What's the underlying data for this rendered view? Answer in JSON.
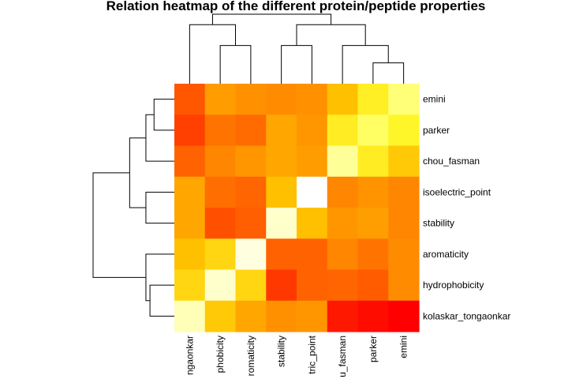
{
  "chart_data": {
    "type": "heatmap",
    "title": "Relation heatmap of the different protein/peptide properties",
    "xlabel": "",
    "ylabel": "",
    "row_labels": [
      "emini",
      "parker",
      "chou_fasman",
      "isoelectric_point",
      "stability",
      "aromaticity",
      "hydrophobicity",
      "kolaskar_tongaonkar"
    ],
    "col_tick_labels": [
      "ngaonkar",
      "phobicity",
      "romaticity",
      "stability",
      "tric_point",
      "u_fasman",
      "parker",
      "emini"
    ],
    "color_scale": [
      "#ff0000",
      "#ff5000",
      "#ff8c00",
      "#ffc000",
      "#ffff30",
      "#ffffff"
    ],
    "value_range": [
      0,
      1
    ],
    "values": [
      [
        0.22,
        0.46,
        0.42,
        0.4,
        0.42,
        0.6,
        0.75,
        0.87
      ],
      [
        0.16,
        0.32,
        0.29,
        0.5,
        0.44,
        0.74,
        0.85,
        0.77
      ],
      [
        0.26,
        0.38,
        0.44,
        0.5,
        0.46,
        0.9,
        0.74,
        0.63
      ],
      [
        0.5,
        0.3,
        0.27,
        0.6,
        1.0,
        0.38,
        0.43,
        0.38
      ],
      [
        0.5,
        0.2,
        0.25,
        0.95,
        0.6,
        0.44,
        0.47,
        0.38
      ],
      [
        0.6,
        0.67,
        0.97,
        0.26,
        0.26,
        0.38,
        0.32,
        0.4
      ],
      [
        0.67,
        0.95,
        0.67,
        0.14,
        0.26,
        0.27,
        0.24,
        0.4
      ],
      [
        0.93,
        0.63,
        0.5,
        0.42,
        0.44,
        0.06,
        0.03,
        0.0
      ]
    ],
    "row_dendrogram": [
      [
        0,
        1,
        0.25
      ],
      [
        8,
        2,
        0.35
      ],
      [
        3,
        4,
        0.35
      ],
      [
        9,
        10,
        0.55
      ],
      [
        6,
        7,
        0.3
      ],
      [
        12,
        5,
        0.35
      ],
      [
        11,
        13,
        1.0
      ]
    ],
    "col_dendrogram": [
      [
        6,
        7,
        0.3
      ],
      [
        5,
        8,
        0.55
      ],
      [
        3,
        4,
        0.55
      ],
      [
        10,
        9,
        0.85
      ],
      [
        1,
        2,
        0.55
      ],
      [
        0,
        12,
        0.85
      ],
      [
        11,
        13,
        1.0
      ]
    ],
    "legend": "none"
  }
}
